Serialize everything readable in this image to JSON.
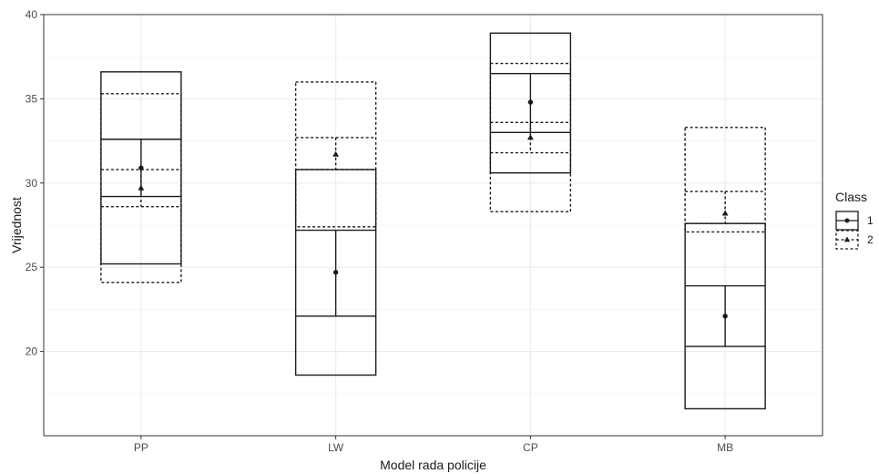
{
  "chart_data": {
    "type": "crossbar",
    "xlabel": "Model rada policije",
    "ylabel": "Vrijednost",
    "categories": [
      "PP",
      "LW",
      "CP",
      "MB"
    ],
    "ylim": [
      15,
      40
    ],
    "yticks": [
      20,
      25,
      30,
      35,
      40
    ],
    "grid": true,
    "legend": {
      "title": "Class",
      "placement": "right",
      "entries": [
        "1",
        "2"
      ]
    },
    "series": [
      {
        "name": "1",
        "line_style": "solid",
        "marker": "circle",
        "outer": [
          [
            25.2,
            36.6
          ],
          [
            18.6,
            30.8
          ],
          [
            30.6,
            38.9
          ],
          [
            16.6,
            27.6
          ]
        ],
        "inner": [
          [
            29.2,
            32.6
          ],
          [
            22.1,
            27.2
          ],
          [
            33.0,
            36.5
          ],
          [
            20.3,
            23.9
          ]
        ],
        "mean": [
          30.9,
          24.7,
          34.8,
          22.1
        ]
      },
      {
        "name": "2",
        "line_style": "dotted",
        "marker": "triangle",
        "outer": [
          [
            24.1,
            35.3
          ],
          [
            27.4,
            36.0
          ],
          [
            28.3,
            37.1
          ],
          [
            27.1,
            33.3
          ]
        ],
        "inner": [
          [
            28.6,
            30.8
          ],
          [
            30.8,
            32.7
          ],
          [
            31.8,
            33.6
          ],
          [
            27.6,
            29.5
          ]
        ],
        "mean": [
          29.7,
          31.7,
          32.7,
          28.2
        ]
      }
    ]
  }
}
